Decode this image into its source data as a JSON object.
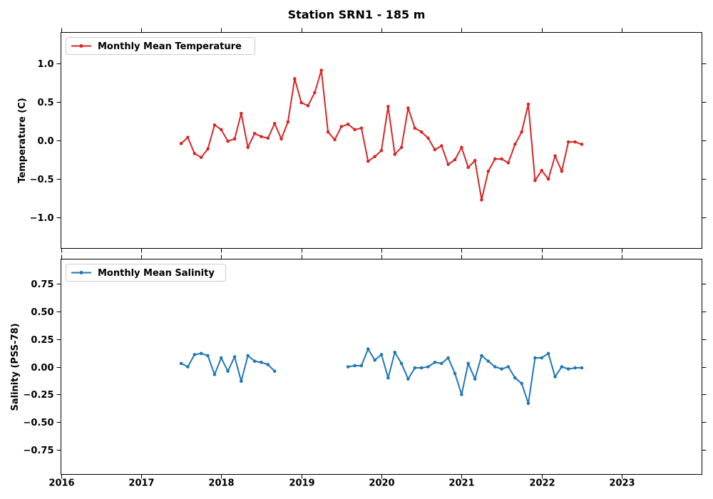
{
  "chart_data": [
    {
      "type": "line",
      "title": "Station SRN1 - 185 m",
      "ylabel": "Temperature (C)",
      "xlabel": "",
      "xlim": [
        2016.0,
        2024.0
      ],
      "ylim": [
        -1.4,
        1.4
      ],
      "yticks": [
        -1.0,
        -0.5,
        0.0,
        0.5,
        1.0
      ],
      "ytick_labels": [
        "−1.0",
        "−0.5",
        "0.0",
        "0.5",
        "1.0"
      ],
      "xticks": [
        2016,
        2017,
        2018,
        2019,
        2020,
        2021,
        2022,
        2023
      ],
      "xtick_labels": [
        "2016",
        "2017",
        "2018",
        "2019",
        "2020",
        "2021",
        "2022",
        "2023"
      ],
      "legend": "top-left",
      "color": "#d62728",
      "series": [
        {
          "name": "Monthly Mean Temperature",
          "x": [
            2017.5,
            2017.583,
            2017.667,
            2017.75,
            2017.833,
            2017.917,
            2018.0,
            2018.083,
            2018.167,
            2018.25,
            2018.333,
            2018.417,
            2018.5,
            2018.583,
            2018.667,
            2018.75,
            2018.833,
            2018.917,
            2019.0,
            2019.083,
            2019.167,
            2019.25,
            2019.333,
            2019.417,
            2019.5,
            2019.583,
            2019.667,
            2019.75,
            2019.833,
            2019.917,
            2020.0,
            2020.083,
            2020.167,
            2020.25,
            2020.333,
            2020.417,
            2020.5,
            2020.583,
            2020.667,
            2020.75,
            2020.833,
            2020.917,
            2021.0,
            2021.083,
            2021.167,
            2021.25,
            2021.333,
            2021.417,
            2021.5,
            2021.583,
            2021.667,
            2021.75,
            2021.833,
            2021.917,
            2022.0,
            2022.083,
            2022.167,
            2022.25,
            2022.333,
            2022.417,
            2022.5
          ],
          "values": [
            -0.04,
            0.04,
            -0.17,
            -0.22,
            -0.11,
            0.2,
            0.14,
            -0.01,
            0.02,
            0.35,
            -0.09,
            0.09,
            0.05,
            0.03,
            0.22,
            0.02,
            0.24,
            0.8,
            0.49,
            0.45,
            0.62,
            0.91,
            0.11,
            0.01,
            0.18,
            0.21,
            0.14,
            0.16,
            -0.27,
            -0.21,
            -0.13,
            0.44,
            -0.18,
            -0.09,
            0.42,
            0.16,
            0.11,
            0.03,
            -0.12,
            -0.07,
            -0.31,
            -0.25,
            -0.09,
            -0.35,
            -0.26,
            -0.77,
            -0.4,
            -0.24,
            -0.24,
            -0.29,
            -0.05,
            0.11,
            0.47,
            -0.52,
            -0.39,
            -0.5,
            -0.2,
            -0.4,
            -0.02,
            -0.02,
            -0.05
          ]
        }
      ]
    },
    {
      "type": "line",
      "ylabel": "Salinity (PSS-78)",
      "xlabel": "",
      "xlim": [
        2016.0,
        2024.0
      ],
      "ylim": [
        -0.97,
        0.97
      ],
      "yticks": [
        -0.75,
        -0.5,
        -0.25,
        0.0,
        0.25,
        0.5,
        0.75
      ],
      "ytick_labels": [
        "−0.75",
        "−0.50",
        "−0.25",
        "0.00",
        "0.25",
        "0.50",
        "0.75"
      ],
      "xticks": [
        2016,
        2017,
        2018,
        2019,
        2020,
        2021,
        2022,
        2023
      ],
      "xtick_labels": [
        "2016",
        "2017",
        "2018",
        "2019",
        "2020",
        "2021",
        "2022",
        "2023"
      ],
      "legend": "top-left",
      "color": "#1f77b4",
      "series": [
        {
          "name": "Monthly Mean Salinity",
          "segments": [
            {
              "x": [
                2017.5,
                2017.583,
                2017.667,
                2017.75,
                2017.833,
                2017.917,
                2018.0,
                2018.083,
                2018.167,
                2018.25,
                2018.333,
                2018.417,
                2018.5,
                2018.583,
                2018.667
              ],
              "values": [
                0.03,
                0.0,
                0.11,
                0.12,
                0.1,
                -0.07,
                0.08,
                -0.04,
                0.09,
                -0.13,
                0.1,
                0.05,
                0.04,
                0.02,
                -0.04
              ]
            },
            {
              "x": [
                2019.583,
                2019.667,
                2019.75,
                2019.833,
                2019.917,
                2020.0,
                2020.083,
                2020.167,
                2020.25,
                2020.333,
                2020.417,
                2020.5,
                2020.583,
                2020.667,
                2020.75,
                2020.833,
                2020.917,
                2021.0,
                2021.083,
                2021.167,
                2021.25,
                2021.333,
                2021.417,
                2021.5,
                2021.583,
                2021.667,
                2021.75,
                2021.833,
                2021.917,
                2022.0,
                2022.083,
                2022.167,
                2022.25,
                2022.333,
                2022.417,
                2022.5
              ],
              "values": [
                0.0,
                0.01,
                0.01,
                0.16,
                0.06,
                0.11,
                -0.1,
                0.13,
                0.03,
                -0.11,
                -0.01,
                -0.01,
                0.0,
                0.04,
                0.03,
                0.08,
                -0.06,
                -0.25,
                0.03,
                -0.11,
                0.1,
                0.05,
                0.0,
                -0.02,
                0.0,
                -0.1,
                -0.15,
                -0.33,
                0.08,
                0.08,
                0.12,
                -0.09,
                0.0,
                -0.02,
                -0.01,
                -0.01
              ]
            }
          ]
        }
      ]
    }
  ]
}
